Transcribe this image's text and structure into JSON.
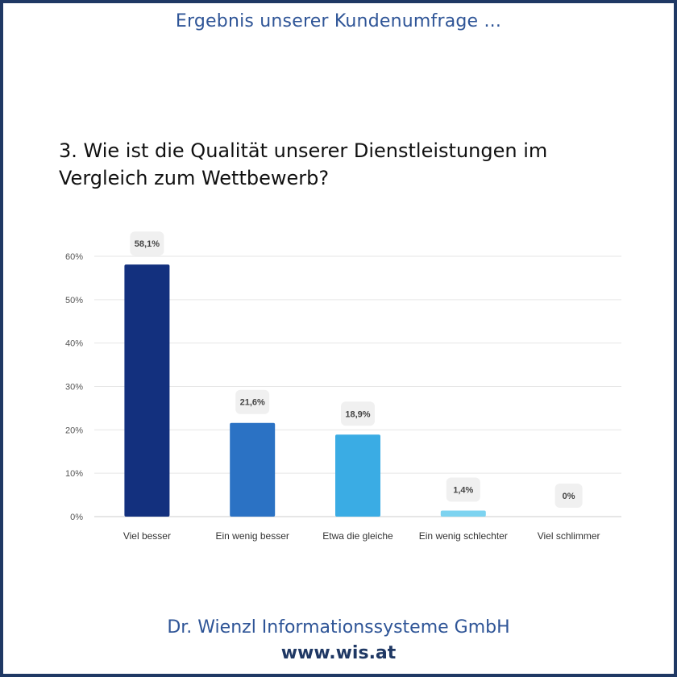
{
  "header": {
    "title": "Ergebnis unserer Kundenumfrage ..."
  },
  "question": {
    "text": "3. Wie ist die Qualität unserer Dienstleistungen im Vergleich zum Wettbewerb?"
  },
  "footer": {
    "company": "Dr. Wienzl Informationssysteme GmbH",
    "url": "www.wis.at"
  },
  "chart_data": {
    "type": "bar",
    "categories": [
      "Viel besser",
      "Ein wenig besser",
      "Etwa die gleiche",
      "Ein wenig schlechter",
      "Viel schlimmer"
    ],
    "values": [
      58.1,
      21.6,
      18.9,
      1.4,
      0
    ],
    "value_labels": [
      "58,1%",
      "21,6%",
      "18,9%",
      "1,4%",
      "0%"
    ],
    "bar_colors": [
      "#13307e",
      "#2b72c4",
      "#3aace4",
      "#7dd3f0",
      "#cfeefa"
    ],
    "ylim": [
      0,
      60
    ],
    "yticks": [
      0,
      10,
      20,
      30,
      40,
      50,
      60
    ],
    "ytick_labels": [
      "0%",
      "10%",
      "20%",
      "30%",
      "40%",
      "50%",
      "60%"
    ],
    "grid": true
  }
}
